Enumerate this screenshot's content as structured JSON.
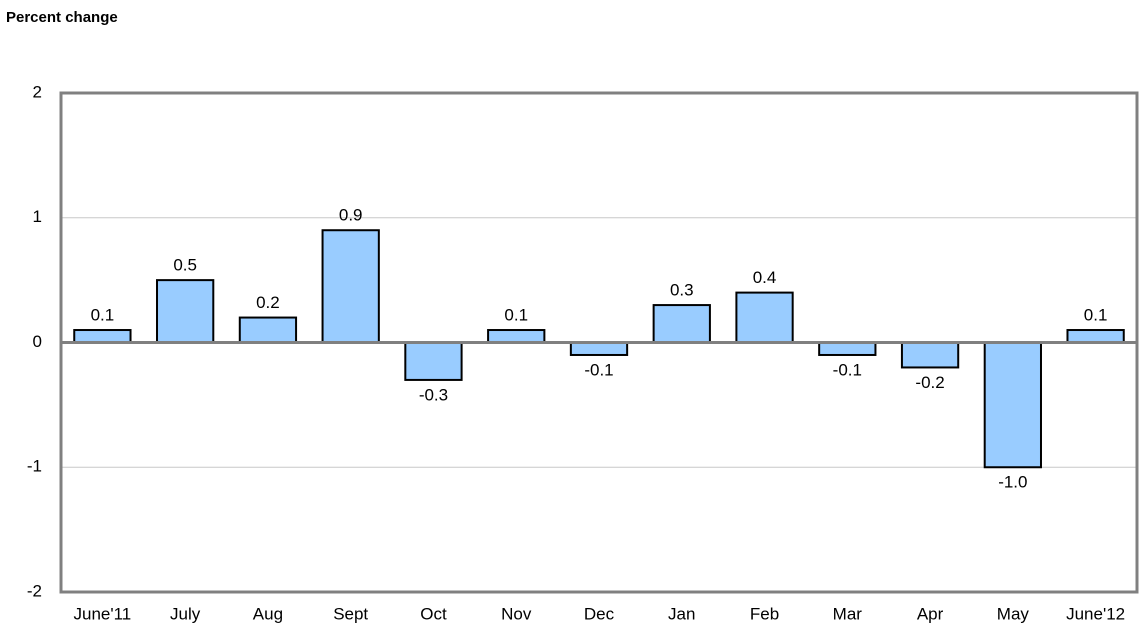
{
  "chart_data": {
    "type": "bar",
    "title": "Percent change",
    "categories": [
      "June'11",
      "July",
      "Aug",
      "Sept",
      "Oct",
      "Nov",
      "Dec",
      "Jan",
      "Feb",
      "Mar",
      "Apr",
      "May",
      "June'12"
    ],
    "values": [
      0.1,
      0.5,
      0.2,
      0.9,
      -0.3,
      0.1,
      -0.1,
      0.3,
      0.4,
      -0.1,
      -0.2,
      -1.0,
      0.1
    ],
    "value_labels": [
      "0.1",
      "0.5",
      "0.2",
      "0.9",
      "-0.3",
      "0.1",
      "-0.1",
      "0.3",
      "0.4",
      "-0.1",
      "-0.2",
      "-1.0",
      "0.1"
    ],
    "color": "#99ccff",
    "ylim": [
      -2,
      2
    ],
    "yticks": [
      -2,
      -1,
      0,
      1,
      2
    ],
    "grid": true
  }
}
